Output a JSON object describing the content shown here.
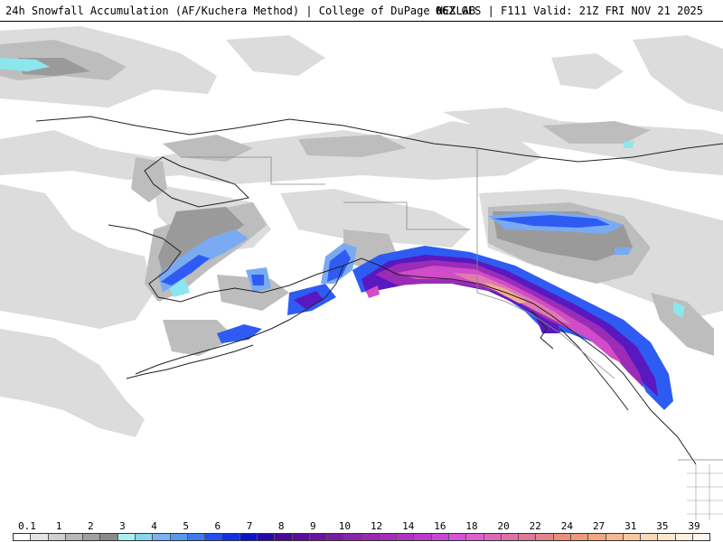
{
  "header": {
    "title_left": "24h Snowfall Accumulation (AF/Kuchera Method) | College of DuPage NEXLAB",
    "title_right": "06Z GFS | F111 Valid: 21Z FRI NOV 21 2025"
  },
  "legend": {
    "labels": [
      "0.1",
      "1",
      "2",
      "3",
      "4",
      "5",
      "6",
      "7",
      "8",
      "9",
      "10",
      "12",
      "14",
      "16",
      "18",
      "20",
      "22",
      "24",
      "27",
      "31",
      "35",
      "39"
    ],
    "colors": [
      "#ffffff",
      "#e4e4e4",
      "#cfcfcf",
      "#b8b8b8",
      "#a0a0a0",
      "#8a8a8a",
      "#a8f0f0",
      "#86d6ec",
      "#78b4f0",
      "#5a96f0",
      "#3c7cf0",
      "#2250f0",
      "#1530e0",
      "#0a14c8",
      "#2a08a8",
      "#4a0a98",
      "#5a0f9a",
      "#6a149e",
      "#7a1aa4",
      "#8a22aa",
      "#9a28b2",
      "#a42eba",
      "#b034c2",
      "#bc3ccc",
      "#c846d4",
      "#d652d8",
      "#e05ed0",
      "#e068b8",
      "#e070a8",
      "#e07898",
      "#e08490",
      "#e89080",
      "#f09a78",
      "#f0a880",
      "#f4b890",
      "#f8c8a0",
      "#fad8b8",
      "#fce6cc",
      "#fef0e0",
      "#fff6ee"
    ],
    "label_positions_note": ""
  },
  "map": {
    "colors": {
      "light_gray": "#dcdcdc",
      "mid_gray": "#bdbdbd",
      "dark_gray": "#9a9a9a",
      "cyan": "#8ce6ee",
      "light_blue": "#7aaaf2",
      "blue": "#2e5cf2",
      "violet": "#5a18c0",
      "purple": "#9a2cb6",
      "magenta": "#d04cc8",
      "pink": "#e07ab0",
      "peach": "#f0b090",
      "coast": "#222222",
      "border": "#888888"
    }
  }
}
